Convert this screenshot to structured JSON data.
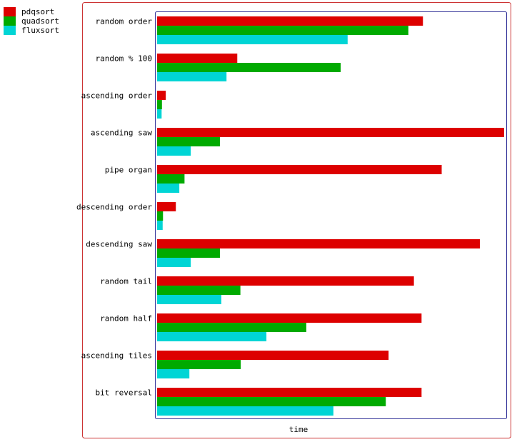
{
  "chart_data": {
    "type": "bar",
    "orientation": "horizontal",
    "xlabel": "time",
    "ylabel": "",
    "xlim": [
      0,
      100
    ],
    "grid": false,
    "legend_position": "top-left",
    "categories": [
      "random order",
      "random % 100",
      "ascending order",
      "ascending saw",
      "pipe organ",
      "descending order",
      "descending saw",
      "random tail",
      "random half",
      "ascending tiles",
      "bit reversal"
    ],
    "series": [
      {
        "name": "pdqsort",
        "color": "#dd0000",
        "values": [
          76.6,
          23.1,
          2.5,
          100,
          82.0,
          5.4,
          93.0,
          74.0,
          76.2,
          66.7,
          76.2
        ]
      },
      {
        "name": "quadsort",
        "color": "#00aa00",
        "values": [
          72.4,
          52.9,
          1.4,
          18.1,
          7.9,
          1.7,
          18.1,
          24.0,
          43.0,
          24.1,
          65.9
        ]
      },
      {
        "name": "fluxsort",
        "color": "#00d5d5",
        "values": [
          54.9,
          20.0,
          1.3,
          9.7,
          6.4,
          1.6,
          9.7,
          18.5,
          31.5,
          9.3,
          50.8
        ]
      }
    ]
  }
}
